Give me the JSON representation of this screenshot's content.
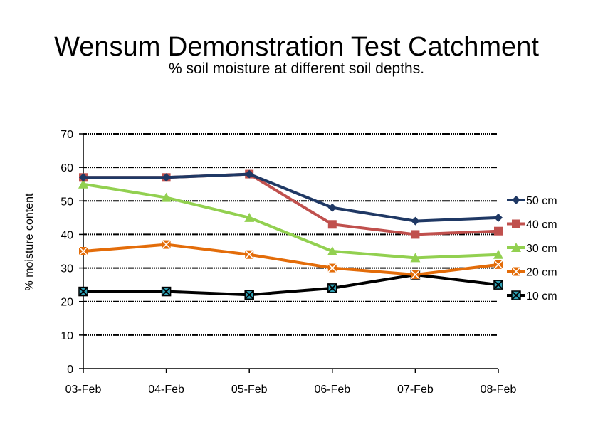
{
  "chart_data": {
    "type": "line",
    "title": "Wensum Demonstration Test Catchment",
    "subtitle": "% soil moisture at different soil depths.",
    "xlabel": "",
    "ylabel": "% moisture content",
    "categories": [
      "03-Feb",
      "04-Feb",
      "05-Feb",
      "06-Feb",
      "07-Feb",
      "08-Feb"
    ],
    "ylim": [
      0,
      70
    ],
    "yticks": [
      0,
      10,
      20,
      30,
      40,
      50,
      60,
      70
    ],
    "grid": "horizontal-dotted",
    "legend": "right",
    "series": [
      {
        "name": "50 cm",
        "values": [
          57,
          57,
          58,
          48,
          44,
          45
        ],
        "color": "#1f3864",
        "marker": "diamond"
      },
      {
        "name": "40 cm",
        "values": [
          57,
          57,
          58,
          43,
          40,
          41
        ],
        "color": "#c0504d",
        "marker": "square"
      },
      {
        "name": "30 cm",
        "values": [
          55,
          51,
          45,
          35,
          33,
          34
        ],
        "color": "#92d050",
        "marker": "triangle"
      },
      {
        "name": "20 cm",
        "values": [
          35,
          37,
          34,
          30,
          28,
          31
        ],
        "color": "#e36c09",
        "marker": "x"
      },
      {
        "name": "10 cm",
        "values": [
          23,
          23,
          22,
          24,
          28,
          25
        ],
        "color": "#000000",
        "marker": "star"
      }
    ]
  }
}
